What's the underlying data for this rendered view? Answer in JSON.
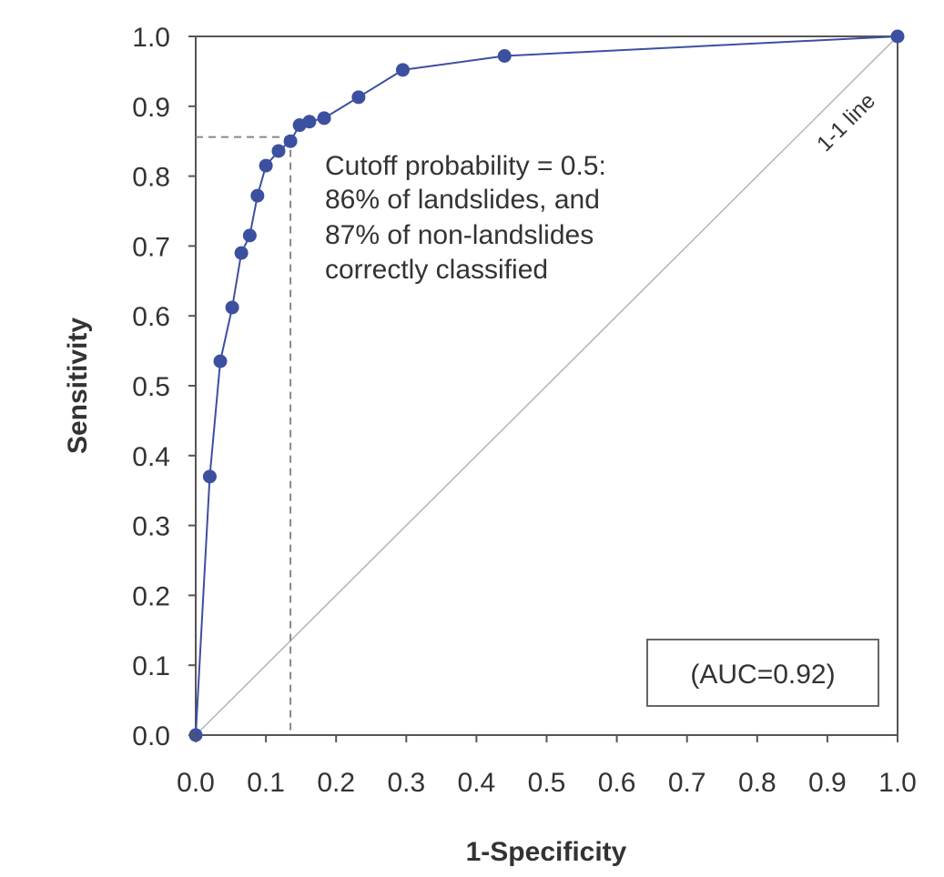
{
  "chart_data": {
    "type": "line",
    "xlabel": "1-Specificity",
    "ylabel": "Sensitivity",
    "xlim": [
      0,
      1
    ],
    "ylim": [
      0,
      1
    ],
    "x_ticks": [
      "0.0",
      "0.1",
      "0.2",
      "0.3",
      "0.4",
      "0.5",
      "0.6",
      "0.7",
      "0.8",
      "0.9",
      "1.0"
    ],
    "y_ticks": [
      "0.0",
      "0.1",
      "0.2",
      "0.3",
      "0.4",
      "0.5",
      "0.6",
      "0.7",
      "0.8",
      "0.9",
      "1.0"
    ],
    "grid": false,
    "series": [
      {
        "color": "#3c50a0",
        "x": [
          0.0,
          0.02,
          0.035,
          0.052,
          0.065,
          0.077,
          0.088,
          0.1,
          0.118,
          0.135,
          0.148,
          0.162,
          0.183,
          0.232,
          0.295,
          0.44,
          1.0
        ],
        "y": [
          0.0,
          0.37,
          0.535,
          0.612,
          0.69,
          0.715,
          0.772,
          0.815,
          0.836,
          0.85,
          0.873,
          0.878,
          0.883,
          0.913,
          0.952,
          0.972,
          1.0
        ]
      }
    ],
    "reference_line": {
      "label": "1-1 line",
      "x": [
        0,
        1
      ],
      "y": [
        0,
        1
      ],
      "color": "#b4b4b4"
    },
    "cutoff": {
      "x": 0.135,
      "y": 0.856,
      "line_color": "#888888"
    },
    "annotation_lines": [
      "Cutoff probability = 0.5:",
      "86% of landslides, and",
      "87% of non-landslides",
      "correctly classified"
    ],
    "auc_label": "(AUC=0.92)"
  }
}
